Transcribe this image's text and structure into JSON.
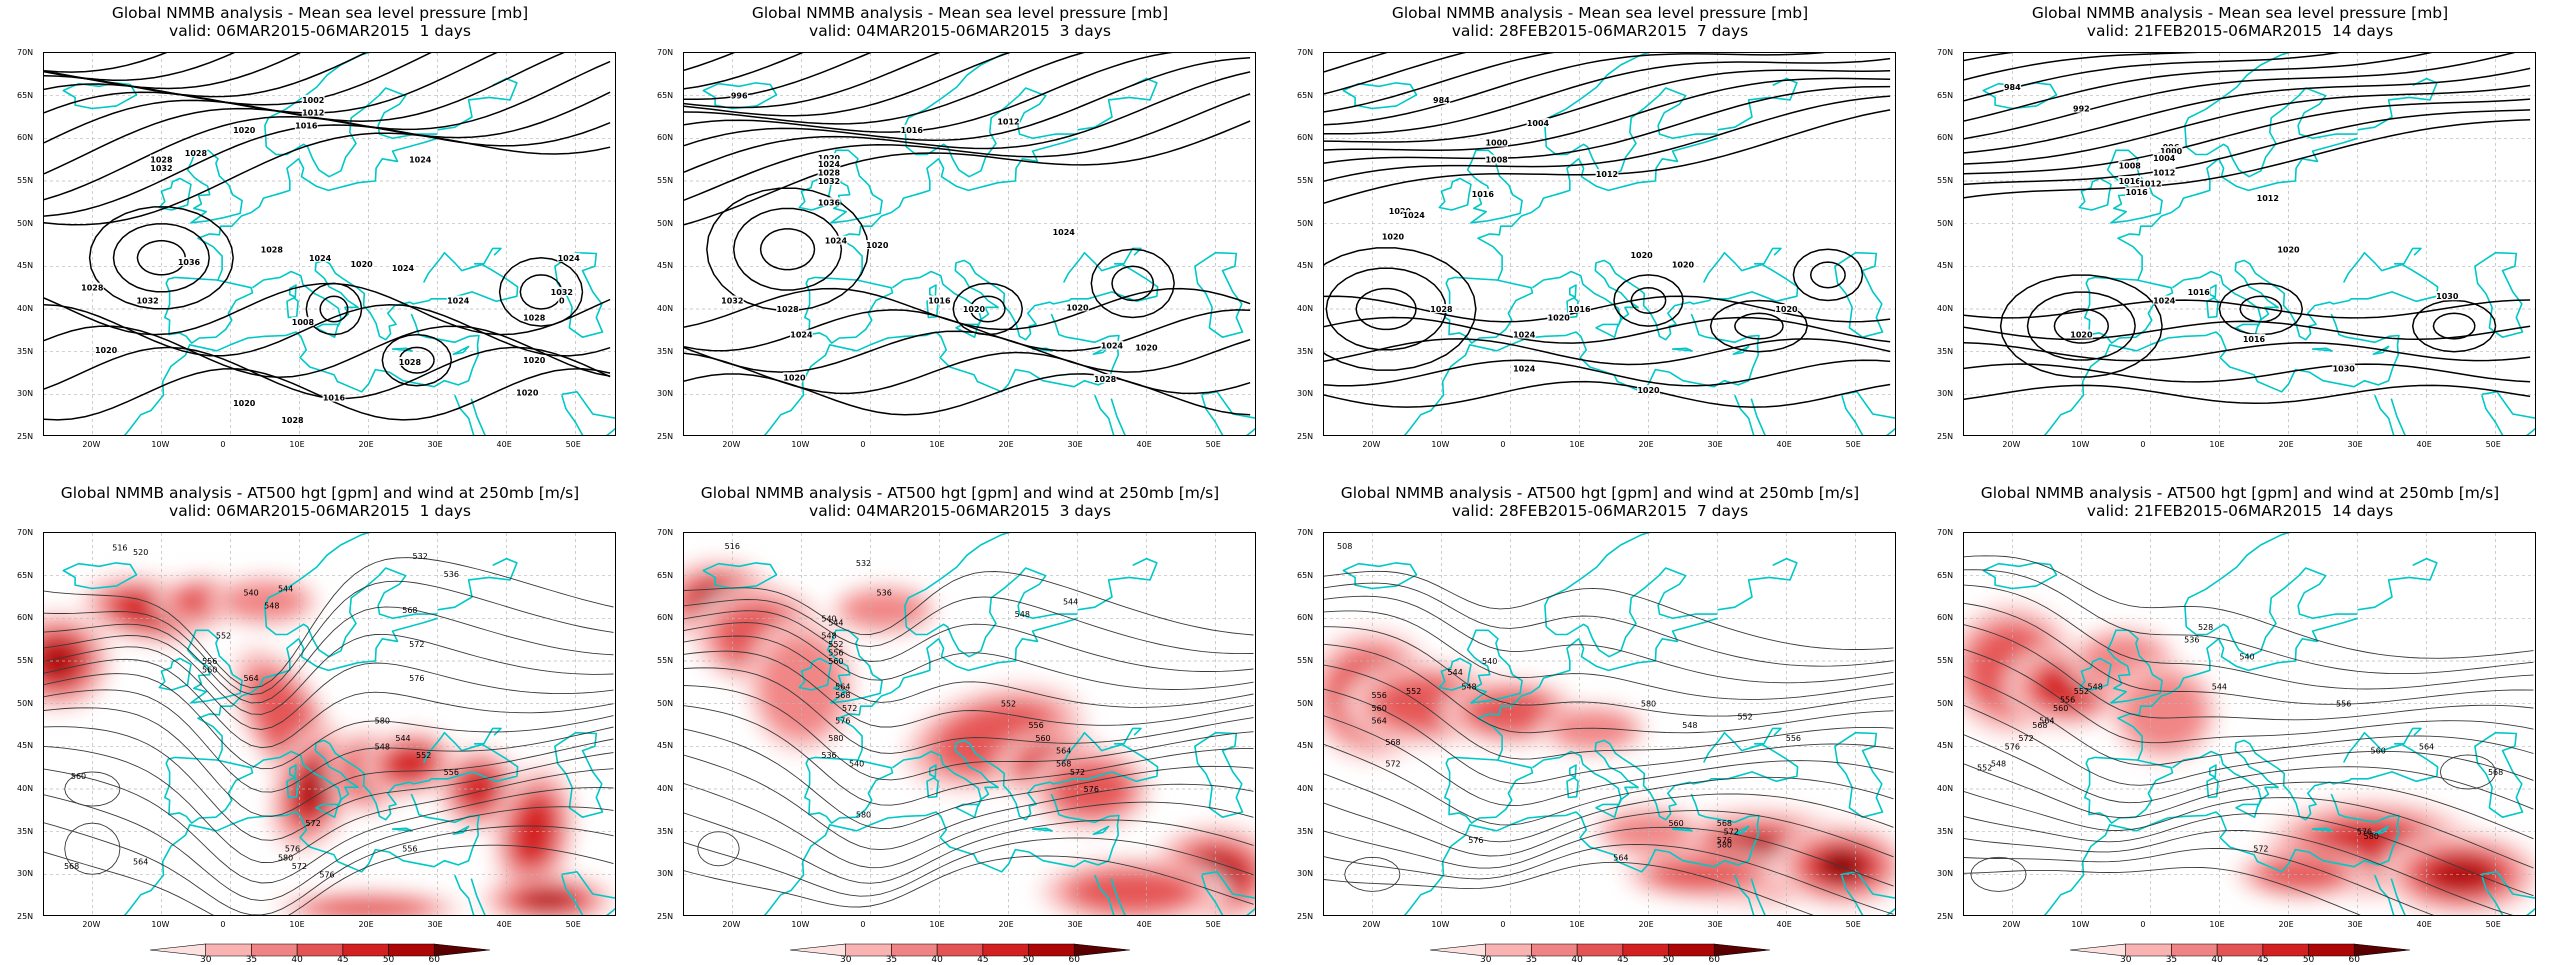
{
  "colors": {
    "coast": "#00c8c8",
    "isobar": "#000000",
    "height_contour": "#3a3a3a",
    "grid": "#b8b8b8",
    "wind_shades": [
      "#fde0e0",
      "#f9b3b3",
      "#f08484",
      "#e45454",
      "#d32020",
      "#ad0606",
      "#5a0000"
    ]
  },
  "axes": {
    "lat_labels": [
      "70N",
      "65N",
      "60N",
      "55N",
      "50N",
      "45N",
      "40N",
      "35N",
      "30N",
      "25N"
    ],
    "lon_labels": [
      "20W",
      "10W",
      "0",
      "10E",
      "20E",
      "30E",
      "40E",
      "50E"
    ],
    "lat_range": [
      25,
      70
    ],
    "lon_range": [
      -27,
      56
    ]
  },
  "colorbar": {
    "ticks": [
      "30",
      "35",
      "40",
      "45",
      "50",
      "60"
    ]
  },
  "rows": [
    {
      "kind": "mslp",
      "title": "Global NMMB analysis - Mean sea level pressure [mb]",
      "panels": [
        {
          "valid": "valid: 06MAR2015-06MAR2015  1 days",
          "labels": [
            "1002",
            "1012",
            "1016",
            "1020",
            "1028",
            "1032",
            "1028",
            "1024",
            "1036",
            "1028",
            "1032",
            "1028",
            "1024",
            "1020",
            "1024",
            "1008",
            "1020",
            "1028",
            "1024",
            "1032",
            "1020",
            "1028",
            "1020",
            "1016",
            "1020",
            "1024",
            "1028",
            "0"
          ]
        },
        {
          "valid": "valid: 04MAR2015-06MAR2015  3 days",
          "labels": [
            "996",
            "1012",
            "1016",
            "1020",
            "1024",
            "1028",
            "1032",
            "1036",
            "1024",
            "1020",
            "1016",
            "1024",
            "1032",
            "1028",
            "1024",
            "1020",
            "1020",
            "1020",
            "1024",
            "1020",
            "1028"
          ]
        },
        {
          "valid": "valid: 28FEB2015-06MAR2015  7 days",
          "labels": [
            "984",
            "1004",
            "1000",
            "1008",
            "1012",
            "1016",
            "1020",
            "1024",
            "1020",
            "1016",
            "1020",
            "1028",
            "1024",
            "1024",
            "1020",
            "1020",
            "1020",
            "1020"
          ]
        },
        {
          "valid": "valid: 21FEB2015-06MAR2015  14 days",
          "labels": [
            "984",
            "992",
            "996",
            "1000",
            "1004",
            "1008",
            "1012",
            "1016",
            "1016",
            "1012",
            "1012",
            "1020",
            "1016",
            "1024",
            "1016",
            "1020",
            "1030",
            "1030"
          ]
        }
      ]
    },
    {
      "kind": "z500",
      "title": "Global NMMB analysis - AT500 hgt [gpm] and wind at 250mb [m/s]",
      "panels": [
        {
          "valid": "valid: 06MAR2015-06MAR2015  1 days",
          "labels": [
            "516",
            "520",
            "532",
            "536",
            "540",
            "544",
            "548",
            "552",
            "556",
            "560",
            "564",
            "568",
            "572",
            "576",
            "580",
            "544",
            "548",
            "552",
            "556",
            "560",
            "564",
            "568",
            "572",
            "576",
            "580",
            "572",
            "576",
            "556"
          ]
        },
        {
          "valid": "valid: 04MAR2015-06MAR2015  3 days",
          "labels": [
            "516",
            "532",
            "536",
            "540",
            "544",
            "548",
            "552",
            "556",
            "560",
            "564",
            "568",
            "572",
            "576",
            "580",
            "536",
            "540",
            "544",
            "548",
            "552",
            "556",
            "560",
            "564",
            "568",
            "572",
            "576",
            "580"
          ]
        },
        {
          "valid": "valid: 28FEB2015-06MAR2015  7 days",
          "labels": [
            "508",
            "540",
            "544",
            "548",
            "552",
            "556",
            "560",
            "564",
            "568",
            "572",
            "576",
            "580",
            "548",
            "552",
            "556",
            "560",
            "564",
            "568",
            "572",
            "576",
            "580"
          ]
        },
        {
          "valid": "valid: 21FEB2015-06MAR2015  14 days",
          "labels": [
            "528",
            "536",
            "540",
            "544",
            "548",
            "552",
            "556",
            "560",
            "564",
            "568",
            "572",
            "576",
            "548",
            "552",
            "556",
            "560",
            "564",
            "568",
            "572",
            "576",
            "580"
          ]
        }
      ]
    }
  ]
}
